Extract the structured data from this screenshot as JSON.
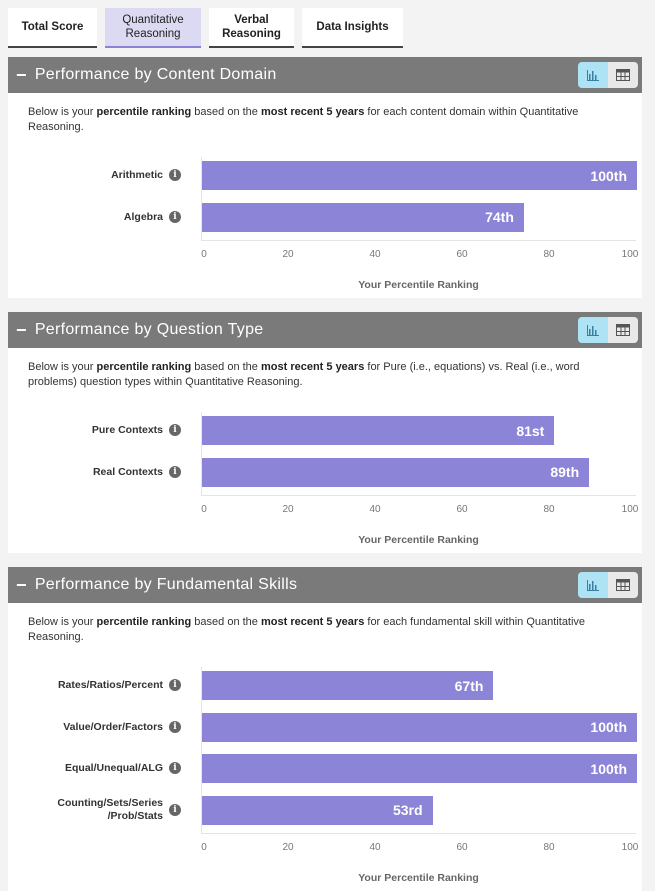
{
  "tabs": [
    {
      "label": "Total Score",
      "active": false
    },
    {
      "label": "Quantitative Reasoning",
      "active": true
    },
    {
      "label": "Verbal Reasoning",
      "active": false
    },
    {
      "label": "Data Insights",
      "active": false
    }
  ],
  "colors": {
    "bar": "#8b84d7",
    "header": "#7a7a7a",
    "active_tab": "#dcd9f2",
    "toggle_on": "#aee3f5"
  },
  "icons": {
    "collapse": "minus-icon",
    "chart_view": "bar-chart-icon",
    "table_view": "table-grid-icon",
    "info": "info-icon"
  },
  "chart_data": [
    {
      "type": "bar",
      "orientation": "horizontal",
      "title": "Performance by Content Domain",
      "description": [
        {
          "t": "Below is your "
        },
        {
          "t": "percentile ranking",
          "b": true
        },
        {
          "t": " based on the "
        },
        {
          "t": "most recent 5 years",
          "b": true
        },
        {
          "t": " for each content domain within Quantitative Reasoning."
        }
      ],
      "categories": [
        "Arithmetic",
        "Algebra"
      ],
      "values": [
        100,
        74
      ],
      "data_labels": [
        "100th",
        "74th"
      ],
      "xlabel": "Your Percentile Ranking",
      "xlim": [
        0,
        100
      ],
      "xticks": [
        "0",
        "20",
        "40",
        "60",
        "80",
        "100"
      ]
    },
    {
      "type": "bar",
      "orientation": "horizontal",
      "title": "Performance by Question Type",
      "description": [
        {
          "t": "Below is your "
        },
        {
          "t": "percentile ranking",
          "b": true
        },
        {
          "t": " based on the "
        },
        {
          "t": "most recent 5 years",
          "b": true
        },
        {
          "t": " for Pure (i.e., equations) vs. Real (i.e., word problems) question types within Quantitative Reasoning."
        }
      ],
      "categories": [
        "Pure Contexts",
        "Real Contexts"
      ],
      "values": [
        81,
        89
      ],
      "data_labels": [
        "81st",
        "89th"
      ],
      "xlabel": "Your Percentile Ranking",
      "xlim": [
        0,
        100
      ],
      "xticks": [
        "0",
        "20",
        "40",
        "60",
        "80",
        "100"
      ]
    },
    {
      "type": "bar",
      "orientation": "horizontal",
      "title": "Performance by Fundamental Skills",
      "description": [
        {
          "t": "Below is your "
        },
        {
          "t": "percentile ranking",
          "b": true
        },
        {
          "t": " based on the "
        },
        {
          "t": "most recent 5 years",
          "b": true
        },
        {
          "t": " for each fundamental skill within Quantitative Reasoning."
        }
      ],
      "categories": [
        "Rates/Ratios/Percent",
        "Value/Order/Factors",
        "Equal/Unequal/ALG",
        "Counting/Sets/Series /Prob/Stats"
      ],
      "values": [
        67,
        100,
        100,
        53
      ],
      "data_labels": [
        "67th",
        "100th",
        "100th",
        "53rd"
      ],
      "xlabel": "Your Percentile Ranking",
      "xlim": [
        0,
        100
      ],
      "xticks": [
        "0",
        "20",
        "40",
        "60",
        "80",
        "100"
      ]
    }
  ]
}
